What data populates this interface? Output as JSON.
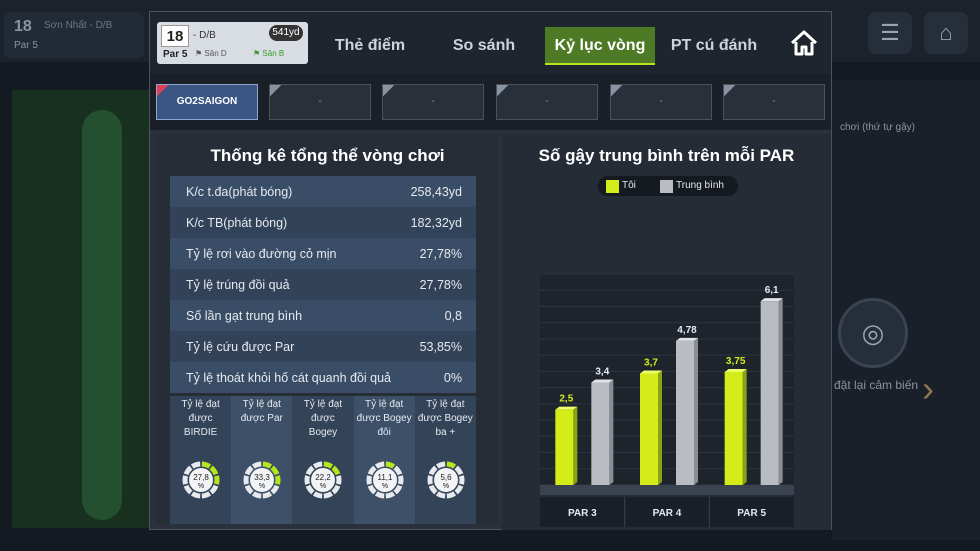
{
  "background": {
    "hole_number": "18",
    "par": "Par 5",
    "course_text": "Sơn Nhất - D/B",
    "right_hint": "chơi (thứ tự gậy)",
    "sensor_label": "đặt lại cảm biến"
  },
  "header": {
    "hole_number": "18",
    "par": "Par 5",
    "tee": "- D/B",
    "yardage": "541yd",
    "flag_left": "Sân D",
    "flag_right": "Sân B"
  },
  "tabs": [
    {
      "label": "Thẻ điểm",
      "active": false
    },
    {
      "label": "So sánh",
      "active": false
    },
    {
      "label": "Kỷ lục vòng",
      "active": true
    },
    {
      "label": "PT cú đánh",
      "active": false
    }
  ],
  "players": [
    {
      "name": "GO2SAIGON",
      "active": true
    },
    {
      "name": "-",
      "active": false
    },
    {
      "name": "-",
      "active": false
    },
    {
      "name": "-",
      "active": false
    },
    {
      "name": "-",
      "active": false
    },
    {
      "name": "-",
      "active": false
    }
  ],
  "stats_panel": {
    "title": "Thống kê tổng thể vòng chơi",
    "rows": [
      {
        "label": "K/c t.đa(phát bóng)",
        "value": "258,43yd"
      },
      {
        "label": "K/c TB(phát bóng)",
        "value": "182,32yd"
      },
      {
        "label": "Tỷ lệ rơi vào đường cỏ mịn",
        "value": "27,78%"
      },
      {
        "label": "Tỷ lệ trúng đồi quả",
        "value": "27,78%"
      },
      {
        "label": "Số lần gạt trung bình",
        "value": "0,8"
      },
      {
        "label": "Tỷ lệ cứu được Par",
        "value": "53,85%"
      },
      {
        "label": "Tỷ lệ thoát khỏi hố cát quanh đồi quả",
        "value": "0%"
      }
    ],
    "rates": [
      {
        "lines": [
          "Tỷ lệ đạt",
          "được",
          "BIRDIE"
        ],
        "value": "27,8",
        "unit": "%",
        "pct": 27.8
      },
      {
        "lines": [
          "Tỷ lệ đạt",
          "được Par"
        ],
        "value": "33,3",
        "unit": "%",
        "pct": 33.3
      },
      {
        "lines": [
          "Tỷ lệ đạt",
          "được",
          "Bogey"
        ],
        "value": "22,2",
        "unit": "%",
        "pct": 22.2
      },
      {
        "lines": [
          "Tỷ lệ đạt",
          "được Bogey",
          "đôi"
        ],
        "value": "11,1",
        "unit": "%",
        "pct": 11.1
      },
      {
        "lines": [
          "Tỷ lệ đạt",
          "được Bogey",
          "ba +"
        ],
        "value": "5,6",
        "unit": "%",
        "pct": 5.6
      }
    ]
  },
  "chart_panel": {
    "title": "Số gậy trung bình trên mỗi PAR",
    "legend": {
      "mine": "Tôi",
      "avg": "Trung bình"
    }
  },
  "chart_data": {
    "type": "bar",
    "title": "Số gậy trung bình trên mỗi PAR",
    "categories": [
      "PAR 3",
      "PAR 4",
      "PAR 5"
    ],
    "series": [
      {
        "name": "Tôi",
        "values": [
          2.5,
          3.7,
          3.75
        ],
        "labels": [
          "2,5",
          "3,7",
          "3,75"
        ],
        "color": "#d4ec1a"
      },
      {
        "name": "Trung bình",
        "values": [
          3.4,
          4.78,
          6.1
        ],
        "labels": [
          "3,4",
          "4,78",
          "6,1"
        ],
        "color": "#b9bdc3"
      }
    ],
    "ylim": [
      0,
      7
    ],
    "grid": true,
    "legend_position": "top-center"
  },
  "colors": {
    "accent": "#b5e61d",
    "active_tab": "#4e7a26",
    "active_player": "#3b5684"
  },
  "icons": {
    "home": "home-icon",
    "menu": "menu-icon",
    "sensor": "sensor-icon"
  }
}
